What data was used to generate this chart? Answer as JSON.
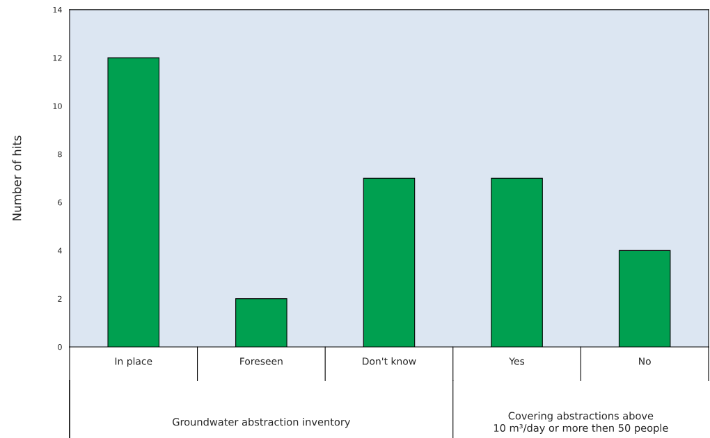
{
  "chart_data": {
    "type": "bar",
    "ylabel": "Number of hits",
    "categories": [
      "In place",
      "Foreseen",
      "Don't know",
      "Yes",
      "No"
    ],
    "values": [
      12,
      2,
      7,
      7,
      4
    ],
    "color": "#00a050",
    "ylim": [
      0,
      14
    ],
    "yticks": [
      0,
      2,
      4,
      6,
      8,
      10,
      12,
      14
    ],
    "grid": false,
    "legend": false,
    "annotations": [
      "Groundwater abstraction inventory",
      "Covering abstractions above\n10 m³/day or more then 50 people"
    ]
  }
}
